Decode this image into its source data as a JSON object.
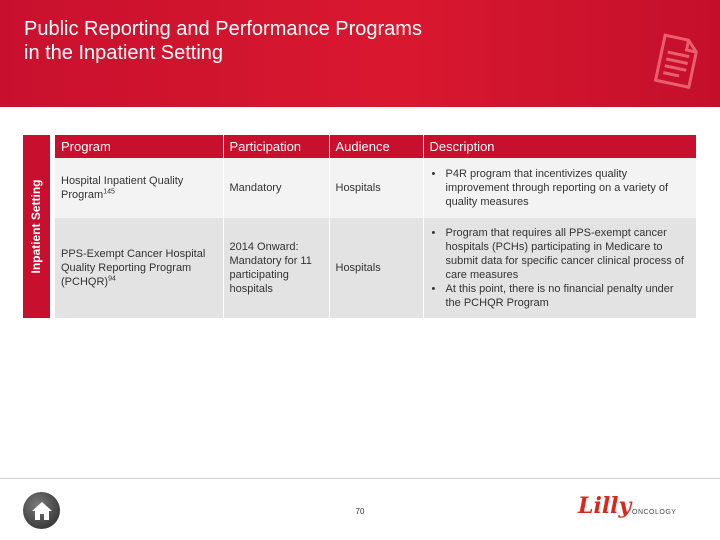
{
  "header": {
    "title_line1": "Public Reporting and Performance Programs",
    "title_line2": "in the Inpatient Setting",
    "icon": "document-icon"
  },
  "side_label": "Inpatient Setting",
  "table": {
    "columns": [
      "Program",
      "Participation",
      "Audience",
      "Description"
    ],
    "rows": [
      {
        "program": "Hospital Inpatient Quality Program",
        "program_ref": "145",
        "participation": "Mandatory",
        "audience": "Hospitals",
        "description": [
          "P4R program that incentivizes quality improvement through reporting on a variety of quality measures"
        ]
      },
      {
        "program": "PPS-Exempt Cancer Hospital Quality Reporting Program (PCHQR)",
        "program_ref": "94",
        "participation": "2014 Onward: Mandatory for 11 participating hospitals",
        "audience": "Hospitals",
        "description": [
          "Program that requires all PPS-exempt cancer hospitals (PCHs) participating in Medicare to submit data for specific cancer clinical process of care measures",
          "At this point, there is no financial penalty under the PCHQR Program"
        ]
      }
    ]
  },
  "footer": {
    "page_number": "70",
    "home_icon": "home-icon",
    "logo_script": "Lilly",
    "logo_word": "ONCOLOGY"
  },
  "colors": {
    "brand_red": "#c8102e",
    "row_light": "#f3f3f3",
    "row_dark": "#e3e3e3"
  }
}
